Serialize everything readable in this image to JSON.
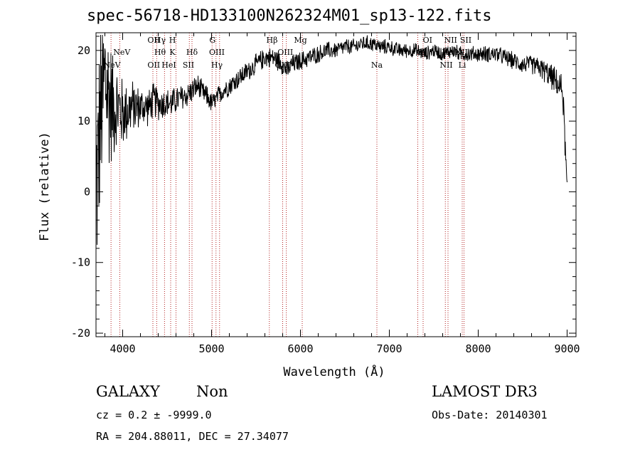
{
  "chart_data": {
    "type": "line",
    "title": "spec-56718-HD133100N262324M01_sp13-122.fits",
    "xlabel": "Wavelength (Å)",
    "ylabel": "Flux (relative)",
    "xlim": [
      3700,
      9100
    ],
    "ylim": [
      -20.5,
      22.5
    ],
    "x_ticks": [
      4000,
      5000,
      6000,
      7000,
      8000,
      9000
    ],
    "y_ticks": [
      -20,
      -10,
      0,
      10,
      20
    ],
    "series": [
      {
        "name": "spectrum",
        "color": "#000000",
        "anchors": [
          [
            3700,
            0
          ],
          [
            3750,
            10
          ],
          [
            3800,
            16
          ],
          [
            3850,
            13
          ],
          [
            3900,
            12
          ],
          [
            3950,
            12
          ],
          [
            4000,
            11
          ],
          [
            4100,
            12
          ],
          [
            4200,
            12
          ],
          [
            4300,
            12
          ],
          [
            4350,
            13
          ],
          [
            4400,
            12.5
          ],
          [
            4450,
            12.5
          ],
          [
            4500,
            12.5
          ],
          [
            4550,
            12.5
          ],
          [
            4600,
            13
          ],
          [
            4700,
            13.5
          ],
          [
            4750,
            14
          ],
          [
            4800,
            14.5
          ],
          [
            4850,
            15
          ],
          [
            4900,
            14
          ],
          [
            4950,
            13.5
          ],
          [
            5000,
            12.5
          ],
          [
            5050,
            13
          ],
          [
            5100,
            14
          ],
          [
            5200,
            15
          ],
          [
            5300,
            16
          ],
          [
            5400,
            17
          ],
          [
            5500,
            18
          ],
          [
            5600,
            19
          ],
          [
            5700,
            19
          ],
          [
            5800,
            18
          ],
          [
            5850,
            17
          ],
          [
            5900,
            18
          ],
          [
            6000,
            18.5
          ],
          [
            6100,
            19
          ],
          [
            6200,
            19.5
          ],
          [
            6300,
            20
          ],
          [
            6400,
            20
          ],
          [
            6500,
            20.5
          ],
          [
            6600,
            20.5
          ],
          [
            6700,
            21
          ],
          [
            6800,
            21
          ],
          [
            6900,
            20.5
          ],
          [
            7000,
            20.5
          ],
          [
            7100,
            20
          ],
          [
            7200,
            20
          ],
          [
            7300,
            20
          ],
          [
            7400,
            19.5
          ],
          [
            7500,
            20
          ],
          [
            7600,
            19.5
          ],
          [
            7700,
            20
          ],
          [
            7800,
            19.5
          ],
          [
            7900,
            19.5
          ],
          [
            8000,
            19.5
          ],
          [
            8100,
            19.5
          ],
          [
            8200,
            19.5
          ],
          [
            8300,
            19
          ],
          [
            8400,
            18.5
          ],
          [
            8500,
            18
          ],
          [
            8600,
            18
          ],
          [
            8700,
            17.5
          ],
          [
            8750,
            17
          ],
          [
            8800,
            16.5
          ],
          [
            8850,
            16
          ],
          [
            8900,
            15
          ],
          [
            8950,
            14.5
          ],
          [
            9000,
            0
          ]
        ],
        "noise": [
          [
            3700,
            10
          ],
          [
            3800,
            9
          ],
          [
            3900,
            5
          ],
          [
            4000,
            3.5
          ],
          [
            4200,
            2
          ],
          [
            4500,
            1.5
          ],
          [
            5000,
            1
          ],
          [
            5800,
            1
          ],
          [
            6500,
            0.8
          ],
          [
            7500,
            0.7
          ],
          [
            8600,
            0.9
          ],
          [
            9000,
            1.5
          ]
        ]
      }
    ],
    "line_markers": {
      "color": "#b22222",
      "wavelengths": [
        3869,
        3968,
        4340,
        4383,
        4471,
        4540,
        4600,
        4750,
        4780,
        5006,
        5050,
        5090,
        5650,
        5800,
        5841,
        6020,
        6860,
        7320,
        7380,
        7630,
        7660,
        7820,
        7840
      ]
    },
    "line_labels": [
      {
        "text": "NeV",
        "x": 3880,
        "row": 3
      },
      {
        "text": "NeV",
        "x": 3990,
        "row": 2
      },
      {
        "text": "OII",
        "x": 4350,
        "row": 1
      },
      {
        "text": "Hγ",
        "x": 4420,
        "row": 1
      },
      {
        "text": "H",
        "x": 4560,
        "row": 1
      },
      {
        "text": "Hθ",
        "x": 4420,
        "row": 2
      },
      {
        "text": "K",
        "x": 4560,
        "row": 2
      },
      {
        "text": "Hδ",
        "x": 4780,
        "row": 2
      },
      {
        "text": "OII",
        "x": 4350,
        "row": 3
      },
      {
        "text": "HeI",
        "x": 4520,
        "row": 3
      },
      {
        "text": "SII",
        "x": 4740,
        "row": 3
      },
      {
        "text": "G",
        "x": 5010,
        "row": 1
      },
      {
        "text": "OIII",
        "x": 5060,
        "row": 2
      },
      {
        "text": "Hγ",
        "x": 5060,
        "row": 3
      },
      {
        "text": "Hβ",
        "x": 5680,
        "row": 1
      },
      {
        "text": "OIII",
        "x": 5830,
        "row": 2
      },
      {
        "text": "OIII",
        "x": 5800,
        "row": 3
      },
      {
        "text": "Mg",
        "x": 6000,
        "row": 1
      },
      {
        "text": "Na",
        "x": 6860,
        "row": 3
      },
      {
        "text": "OI",
        "x": 7430,
        "row": 1
      },
      {
        "text": "OI",
        "x": 7360,
        "row": 2
      },
      {
        "text": "NII",
        "x": 7690,
        "row": 1
      },
      {
        "text": "SII",
        "x": 7860,
        "row": 1
      },
      {
        "text": "Hα",
        "x": 7660,
        "row": 2
      },
      {
        "text": "NII",
        "x": 7810,
        "row": 2
      },
      {
        "text": "NII",
        "x": 7640,
        "row": 3
      },
      {
        "text": "Li",
        "x": 7820,
        "row": 3
      }
    ]
  },
  "info": {
    "class": "GALAXY",
    "subclass": "Non",
    "survey": "LAMOST DR3",
    "cz": "cz = 0.2 ± -9999.0",
    "obs_date": "Obs-Date: 20140301",
    "coords": "RA = 204.88011, DEC =  27.34077"
  }
}
